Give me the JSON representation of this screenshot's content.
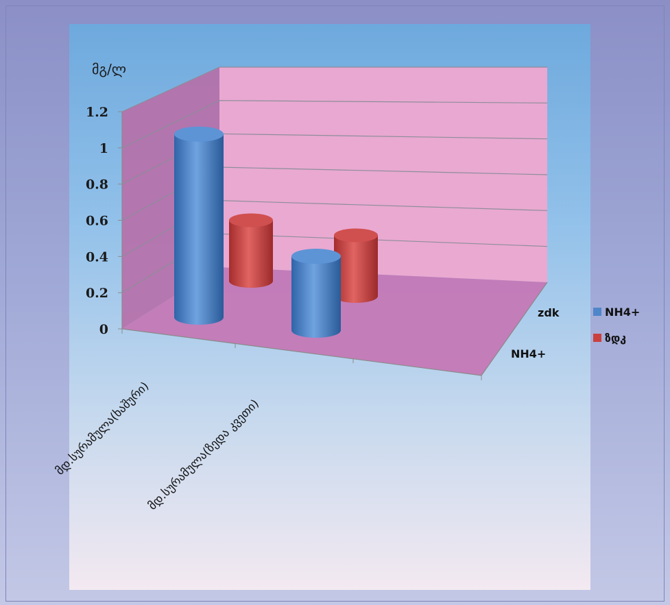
{
  "chart_data": {
    "type": "bar",
    "style": "3d-cylinder",
    "ylabel": "მგ/ლ",
    "ylim": [
      0,
      1.2
    ],
    "y_ticks": [
      "0",
      "0.2",
      "0.4",
      "0.6",
      "0.8",
      "1",
      "1.2"
    ],
    "categories": [
      "მდ.სურამულა(ხაშური)",
      "მდ.სურამულა(ზედა კვეთი)"
    ],
    "depth_labels": [
      "zdk",
      "NH4+"
    ],
    "series": [
      {
        "name": "NH4+",
        "values": [
          1.04,
          0.42
        ],
        "color": "#4f86c9"
      },
      {
        "name": "ზდკ",
        "values": [
          0.39,
          0.39
        ],
        "color": "#c9403f"
      }
    ],
    "legend_position": "right",
    "grid": true
  }
}
